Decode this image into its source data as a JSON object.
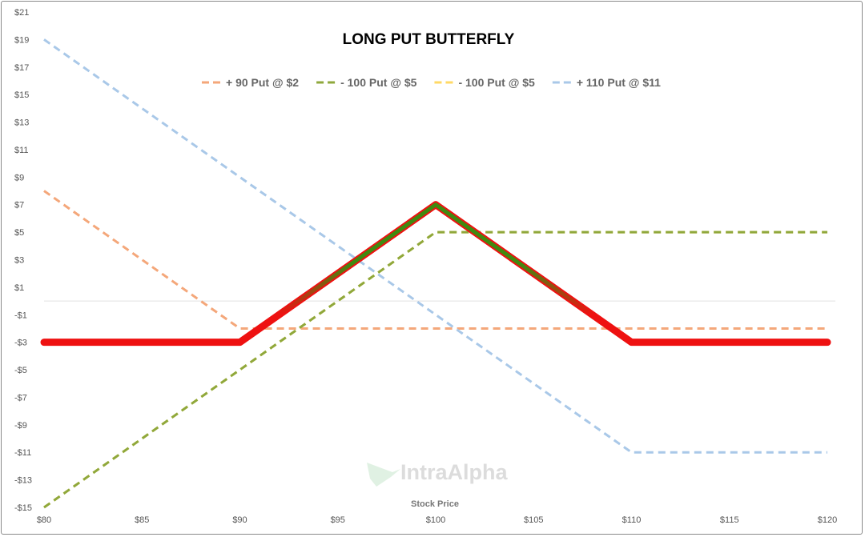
{
  "chart_data": {
    "type": "line",
    "title": "LONG PUT BUTTERFLY",
    "xlabel": "Stock Price",
    "ylabel": "",
    "xlim": [
      80,
      120
    ],
    "ylim": [
      -15,
      21
    ],
    "x_ticks": [
      80,
      85,
      90,
      95,
      100,
      105,
      110,
      115,
      120
    ],
    "x_tick_labels": [
      "$80",
      "$85",
      "$90",
      "$95",
      "$100",
      "$105",
      "$110",
      "$115",
      "$120"
    ],
    "y_ticks": [
      -15,
      -13,
      -11,
      -9,
      -7,
      -5,
      -3,
      -1,
      1,
      3,
      5,
      7,
      9,
      11,
      13,
      15,
      17,
      19,
      21
    ],
    "y_tick_labels": [
      "-$15",
      "-$13",
      "-$11",
      "-$9",
      "-$7",
      "-$5",
      "-$3",
      "-$1",
      "$1",
      "$3",
      "$5",
      "$7",
      "$9",
      "$11",
      "$13",
      "$15",
      "$17",
      "$19",
      "$21"
    ],
    "legend_position": "top",
    "grid": false,
    "series": [
      {
        "name": "+ 90 Put @ $2",
        "color": "#f4a77a",
        "dashed": true,
        "x": [
          80,
          90,
          120
        ],
        "y": [
          8,
          -2,
          -2
        ]
      },
      {
        "name": "- 100 Put @ $5",
        "color": "#8fa83c",
        "dashed": true,
        "x": [
          80,
          100,
          120
        ],
        "y": [
          -15,
          5,
          5
        ]
      },
      {
        "name": "- 100 Put @ $5",
        "color": "#ffd966",
        "dashed": true,
        "x": [
          80,
          100,
          120
        ],
        "y": [
          -15,
          5,
          5
        ]
      },
      {
        "name": "+ 110 Put @ $11",
        "color": "#a9c8e8",
        "dashed": true,
        "x": [
          80,
          110,
          120
        ],
        "y": [
          19,
          -11,
          -11
        ]
      }
    ],
    "net_payoff": {
      "color_loss": "#ee1111",
      "color_profit": "#3f8a10",
      "x": [
        80,
        90,
        100,
        110,
        120
      ],
      "y": [
        -3,
        -3,
        7,
        -3,
        -3
      ]
    },
    "watermark": "IntraAlpha"
  }
}
